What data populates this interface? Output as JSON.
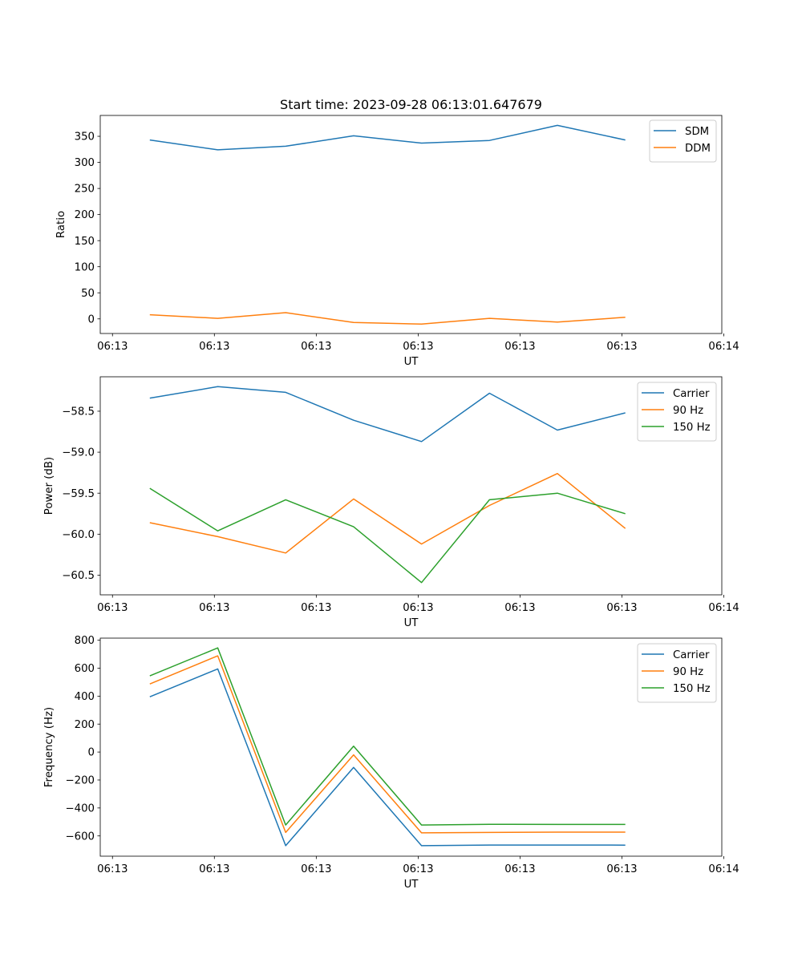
{
  "figure_title": "Start time: 2023-09-28 06:13:01.647679",
  "colors": {
    "blue": "#1f77b4",
    "orange": "#ff7f0e",
    "green": "#2ca02c"
  },
  "chart_data": [
    {
      "type": "line",
      "title": "Start time: 2023-09-28 06:13:01.647679",
      "xlabel": "UT",
      "ylabel": "Ratio",
      "x": [
        1,
        2,
        3,
        4,
        5,
        6,
        7,
        8
      ],
      "xlim": [
        0.27,
        9.42
      ],
      "xticks": [
        0.45,
        1.95,
        3.45,
        4.95,
        6.45,
        7.95,
        9.45
      ],
      "xtick_labels": [
        "06:13",
        "06:13",
        "06:13",
        "06:13",
        "06:13",
        "06:13",
        "06:14"
      ],
      "ylim": [
        -28,
        390
      ],
      "yticks": [
        0,
        50,
        100,
        150,
        200,
        250,
        300,
        350
      ],
      "ytick_labels": [
        "0",
        "50",
        "100",
        "150",
        "200",
        "250",
        "300",
        "350"
      ],
      "legend_position": "top-right",
      "series": [
        {
          "name": "SDM",
          "color": "#1f77b4",
          "values": [
            343,
            324,
            331,
            351,
            337,
            342,
            371,
            343
          ]
        },
        {
          "name": "DDM",
          "color": "#ff7f0e",
          "values": [
            8,
            1,
            12,
            -7,
            -10,
            1,
            -6,
            3
          ]
        }
      ]
    },
    {
      "type": "line",
      "title": "",
      "xlabel": "UT",
      "ylabel": "Power (dB)",
      "x": [
        1,
        2,
        3,
        4,
        5,
        6,
        7,
        8
      ],
      "xlim": [
        0.27,
        9.42
      ],
      "xticks": [
        0.45,
        1.95,
        3.45,
        4.95,
        6.45,
        7.95,
        9.45
      ],
      "xtick_labels": [
        "06:13",
        "06:13",
        "06:13",
        "06:13",
        "06:13",
        "06:13",
        "06:14"
      ],
      "ylim": [
        -60.74,
        -58.08
      ],
      "yticks": [
        -58.5,
        -59.0,
        -59.5,
        -60.0,
        -60.5
      ],
      "ytick_labels": [
        "−58.5",
        "−59.0",
        "−59.5",
        "−60.0",
        "−60.5"
      ],
      "legend_position": "top-right",
      "series": [
        {
          "name": "Carrier",
          "color": "#1f77b4",
          "values": [
            -58.34,
            -58.2,
            -58.27,
            -58.61,
            -58.87,
            -58.28,
            -58.73,
            -58.52
          ]
        },
        {
          "name": "90 Hz",
          "color": "#ff7f0e",
          "values": [
            -59.86,
            -60.03,
            -60.23,
            -59.57,
            -60.12,
            -59.65,
            -59.26,
            -59.93
          ]
        },
        {
          "name": "150 Hz",
          "color": "#2ca02c",
          "values": [
            -59.44,
            -59.96,
            -59.58,
            -59.91,
            -60.59,
            -59.58,
            -59.5,
            -59.75
          ]
        }
      ]
    },
    {
      "type": "line",
      "title": "",
      "xlabel": "UT",
      "ylabel": "Frequency (Hz)",
      "x": [
        1,
        2,
        3,
        4,
        5,
        6,
        7,
        8
      ],
      "xlim": [
        0.27,
        9.42
      ],
      "xticks": [
        0.45,
        1.95,
        3.45,
        4.95,
        6.45,
        7.95,
        9.45
      ],
      "xtick_labels": [
        "06:13",
        "06:13",
        "06:13",
        "06:13",
        "06:13",
        "06:13",
        "06:14"
      ],
      "ylim": [
        -745,
        815
      ],
      "yticks": [
        800,
        600,
        400,
        200,
        0,
        -200,
        -400,
        -600
      ],
      "ytick_labels": [
        "800",
        "600",
        "400",
        "200",
        "0",
        "−200",
        "−400",
        "−600"
      ],
      "legend_position": "top-right",
      "series": [
        {
          "name": "Carrier",
          "color": "#1f77b4",
          "values": [
            395,
            595,
            -670,
            -110,
            -670,
            -665,
            -665,
            -666
          ]
        },
        {
          "name": "90 Hz",
          "color": "#ff7f0e",
          "values": [
            487,
            688,
            -575,
            -20,
            -578,
            -575,
            -573,
            -573
          ]
        },
        {
          "name": "150 Hz",
          "color": "#2ca02c",
          "values": [
            545,
            745,
            -522,
            42,
            -522,
            -517,
            -518,
            -518
          ]
        }
      ]
    }
  ]
}
